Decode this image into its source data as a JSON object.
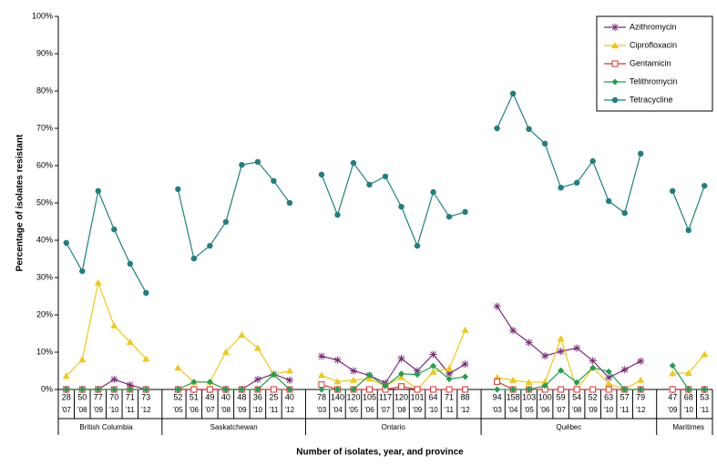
{
  "chart_data": {
    "type": "line",
    "y_label": "Percentage of isolates resistant",
    "x_label": "Number of isolates, year, and province",
    "ylim": [
      0,
      100
    ],
    "yticks": [
      {
        "value": 0,
        "label": "0%"
      },
      {
        "value": 10,
        "label": "10%"
      },
      {
        "value": 20,
        "label": "20%"
      },
      {
        "value": 30,
        "label": "30%"
      },
      {
        "value": 40,
        "label": "40%"
      },
      {
        "value": 50,
        "label": "50%"
      },
      {
        "value": 60,
        "label": "60%"
      },
      {
        "value": 70,
        "label": "70%"
      },
      {
        "value": 80,
        "label": "80%"
      },
      {
        "value": 90,
        "label": "90%"
      },
      {
        "value": 100,
        "label": "100%"
      }
    ],
    "grid": false,
    "legend": "top-right",
    "groups": [
      {
        "name": "British Columbia",
        "isolates": [
          "28",
          "50",
          "77",
          "70",
          "71",
          "73"
        ],
        "years": [
          "'07",
          "'08",
          "'09",
          "'10",
          "'11",
          "'12"
        ]
      },
      {
        "name": "Saskatchewan",
        "isolates": [
          "52",
          "51",
          "49",
          "40",
          "48",
          "36",
          "25",
          "40"
        ],
        "years": [
          "'05",
          "'06",
          "'07",
          "'08",
          "'09",
          "'10",
          "'11",
          "'12"
        ]
      },
      {
        "name": "Ontario",
        "isolates": [
          "78",
          "140",
          "120",
          "105",
          "117",
          "120",
          "101",
          "64",
          "71",
          "88"
        ],
        "years": [
          "'03",
          "'04",
          "'05",
          "'06",
          "'07",
          "'08",
          "'09",
          "'10",
          "'11",
          "'12"
        ]
      },
      {
        "name": "Québec",
        "isolates": [
          "94",
          "158",
          "103",
          "100",
          "59",
          "54",
          "52",
          "63",
          "57",
          "79"
        ],
        "years": [
          "'03",
          "'04",
          "'05",
          "'06",
          "'07",
          "'08",
          "'09",
          "'10",
          "'11",
          "'12"
        ]
      },
      {
        "name": "Maritimes",
        "isolates": [
          "47",
          "68",
          "53"
        ],
        "years": [
          "'09",
          "'10",
          "'11"
        ]
      }
    ],
    "series": [
      {
        "name": "Azithromycin",
        "color": "#7b2c7b",
        "marker": "star",
        "values": [
          [
            0,
            0,
            0,
            2.7,
            1.2,
            0
          ],
          [
            0,
            0,
            0,
            0,
            0,
            2.7,
            4.1,
            2.5
          ],
          [
            8.9,
            7.9,
            5.0,
            3.8,
            1.7,
            8.3,
            5.0,
            9.4,
            4.2,
            6.8
          ],
          [
            22.3,
            15.8,
            12.6,
            9.0,
            10.2,
            11.1,
            7.7,
            3.2,
            5.3,
            7.6
          ],
          [
            0,
            0,
            0
          ]
        ]
      },
      {
        "name": "Ciprofloxacin",
        "color": "#f0c814",
        "marker": "triangle",
        "values": [
          [
            3.6,
            8.0,
            28.6,
            17.1,
            12.7,
            8.2
          ],
          [
            5.8,
            2.0,
            2.0,
            10.0,
            14.6,
            11.1,
            4.0,
            5.0
          ],
          [
            3.8,
            2.1,
            2.5,
            2.9,
            0.9,
            3.3,
            0,
            4.7,
            5.6,
            15.9
          ],
          [
            3.2,
            2.5,
            1.9,
            2.0,
            13.6,
            0,
            5.8,
            1.6,
            0,
            2.5
          ],
          [
            4.3,
            4.4,
            9.4
          ]
        ]
      },
      {
        "name": "Gentamicin",
        "color": "#e03030",
        "marker": "square",
        "values": [
          [
            0,
            0,
            0,
            0,
            0,
            0
          ],
          [
            0,
            0,
            0,
            0,
            0,
            0,
            0,
            0
          ],
          [
            1.3,
            0,
            0,
            0,
            0,
            0.8,
            0,
            0,
            0,
            0
          ],
          [
            2.1,
            0,
            0,
            0,
            0,
            0,
            0,
            0,
            0,
            0
          ],
          [
            0,
            0,
            0
          ]
        ]
      },
      {
        "name": "Telithromycin",
        "color": "#20a050",
        "marker": "diamond",
        "values": [
          [
            0,
            0,
            0,
            0,
            0,
            0
          ],
          [
            0,
            2.0,
            2.0,
            0,
            0,
            0,
            4.0,
            0
          ],
          [
            0,
            0,
            0,
            3.8,
            0.9,
            4.2,
            4.0,
            6.3,
            2.8,
            3.4
          ],
          [
            0,
            0,
            0,
            1.0,
            5.1,
            1.9,
            5.8,
            4.8,
            0,
            0
          ],
          [
            6.4,
            0,
            0
          ]
        ]
      },
      {
        "name": "Tetracycline",
        "color": "#1f7f80",
        "marker": "circle",
        "values": [
          [
            39.3,
            31.7,
            53.2,
            42.9,
            33.7,
            25.9
          ],
          [
            53.7,
            35.1,
            38.5,
            44.9,
            60.2,
            61.0,
            55.9,
            50.0
          ],
          [
            57.6,
            46.8,
            60.7,
            54.9,
            57.1,
            49.0,
            38.5,
            52.9,
            46.3,
            47.6
          ],
          [
            70.0,
            79.3,
            69.8,
            65.9,
            54.1,
            55.4,
            61.2,
            50.5,
            47.3,
            63.2
          ],
          [
            53.2,
            42.7,
            54.6
          ]
        ]
      }
    ]
  }
}
